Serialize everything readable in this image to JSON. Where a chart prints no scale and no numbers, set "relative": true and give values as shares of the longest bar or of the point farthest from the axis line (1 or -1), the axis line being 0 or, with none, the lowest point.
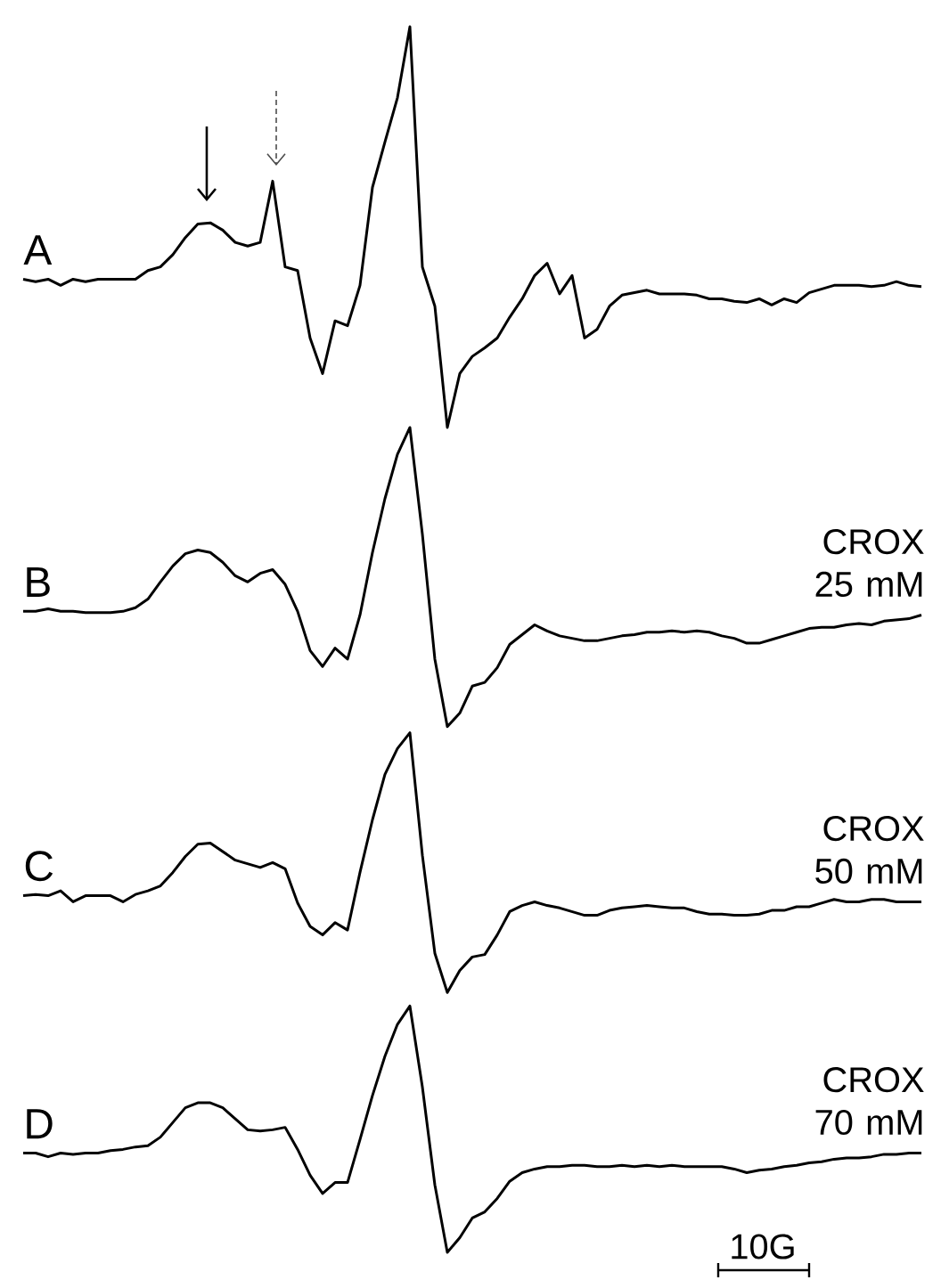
{
  "chart_data": {
    "type": "line",
    "relative": true,
    "categories": [
      null,
      null,
      null,
      null,
      null,
      null,
      null,
      null,
      null,
      null,
      null,
      null,
      null,
      null,
      null,
      null,
      null,
      null,
      null,
      null,
      null,
      null,
      null,
      null,
      null,
      null,
      null,
      null,
      null,
      null,
      null,
      null,
      null,
      null,
      null,
      null,
      null,
      null,
      null,
      null,
      null,
      null,
      null,
      null,
      null,
      null,
      null,
      null,
      null,
      null,
      null,
      null,
      null,
      null,
      null,
      null,
      null,
      null,
      null,
      null,
      null,
      null,
      null,
      null,
      null,
      null,
      null,
      null,
      null,
      null,
      null,
      null,
      null
    ],
    "series": [
      {
        "name": "A",
        "color": "#000000",
        "values": [
          0.794,
          0.792,
          0.794,
          0.789,
          0.794,
          0.792,
          0.794,
          0.794,
          0.794,
          0.794,
          0.801,
          0.804,
          0.814,
          0.828,
          0.839,
          0.84,
          0.834,
          0.824,
          0.821,
          0.824,
          0.874,
          0.804,
          0.801,
          0.746,
          0.717,
          0.76,
          0.756,
          0.789,
          0.869,
          0.906,
          0.942,
          1,
          0.804,
          0.772,
          0.673,
          0.717,
          0.731,
          0.738,
          0.746,
          0.763,
          0.778,
          0.797,
          0.807,
          0.782,
          0.797,
          0.746,
          0.753,
          0.772,
          0.781,
          0.783,
          0.785,
          0.782,
          0.782,
          0.782,
          0.781,
          0.778,
          0.778,
          0.776,
          0.775,
          0.778,
          0.773,
          0.778,
          0.775,
          0.783,
          0.786,
          0.789,
          0.789,
          0.789,
          0.788,
          0.789,
          0.792,
          0.789,
          0.788
        ]
      },
      {
        "name": "B",
        "color": "#000000",
        "values": [
          0.523,
          0.523,
          0.525,
          0.523,
          0.523,
          0.522,
          0.522,
          0.522,
          0.523,
          0.526,
          0.533,
          0.547,
          0.56,
          0.57,
          0.573,
          0.571,
          0.563,
          0.552,
          0.547,
          0.554,
          0.557,
          0.545,
          0.523,
          0.491,
          0.478,
          0.493,
          0.484,
          0.52,
          0.571,
          0.615,
          0.651,
          0.673,
          0.586,
          0.484,
          0.429,
          0.44,
          0.462,
          0.465,
          0.477,
          0.496,
          0.504,
          0.512,
          0.507,
          0.503,
          0.501,
          0.499,
          0.499,
          0.501,
          0.503,
          0.504,
          0.506,
          0.506,
          0.507,
          0.506,
          0.507,
          0.506,
          0.503,
          0.501,
          0.497,
          0.497,
          0.5,
          0.503,
          0.506,
          0.509,
          0.51,
          0.51,
          0.512,
          0.513,
          0.512,
          0.515,
          0.516,
          0.517,
          0.52
        ]
      },
      {
        "name": "C",
        "color": "#000000",
        "values": [
          0.291,
          0.292,
          0.291,
          0.295,
          0.286,
          0.291,
          0.291,
          0.291,
          0.286,
          0.292,
          0.295,
          0.299,
          0.31,
          0.323,
          0.333,
          0.334,
          0.327,
          0.32,
          0.317,
          0.314,
          0.318,
          0.313,
          0.285,
          0.266,
          0.259,
          0.269,
          0.263,
          0.31,
          0.353,
          0.39,
          0.411,
          0.424,
          0.324,
          0.244,
          0.212,
          0.23,
          0.241,
          0.243,
          0.259,
          0.278,
          0.283,
          0.286,
          0.283,
          0.281,
          0.278,
          0.275,
          0.275,
          0.279,
          0.281,
          0.282,
          0.283,
          0.282,
          0.281,
          0.281,
          0.278,
          0.276,
          0.276,
          0.275,
          0.275,
          0.276,
          0.279,
          0.279,
          0.282,
          0.282,
          0.285,
          0.288,
          0.286,
          0.286,
          0.288,
          0.288,
          0.286,
          0.286,
          0.286
        ]
      },
      {
        "name": "D",
        "color": "#000000",
        "values": [
          0.081,
          0.081,
          0.078,
          0.081,
          0.08,
          0.081,
          0.081,
          0.083,
          0.084,
          0.086,
          0.087,
          0.094,
          0.106,
          0.118,
          0.122,
          0.122,
          0.118,
          0.109,
          0.1,
          0.099,
          0.1,
          0.102,
          0.084,
          0.063,
          0.048,
          0.057,
          0.057,
          0.092,
          0.128,
          0.16,
          0.186,
          0.201,
          0.135,
          0.055,
          0,
          0.012,
          0.028,
          0.033,
          0.044,
          0.058,
          0.065,
          0.068,
          0.07,
          0.07,
          0.071,
          0.071,
          0.07,
          0.07,
          0.071,
          0.07,
          0.071,
          0.07,
          0.071,
          0.07,
          0.07,
          0.07,
          0.07,
          0.068,
          0.065,
          0.067,
          0.068,
          0.07,
          0.071,
          0.073,
          0.074,
          0.076,
          0.077,
          0.077,
          0.078,
          0.08,
          0.08,
          0.081,
          0.081
        ]
      }
    ],
    "annotations": [
      "CROX 25 mM",
      "CROX 50 mM",
      "CROX 70 mM",
      "10G"
    ]
  }
}
